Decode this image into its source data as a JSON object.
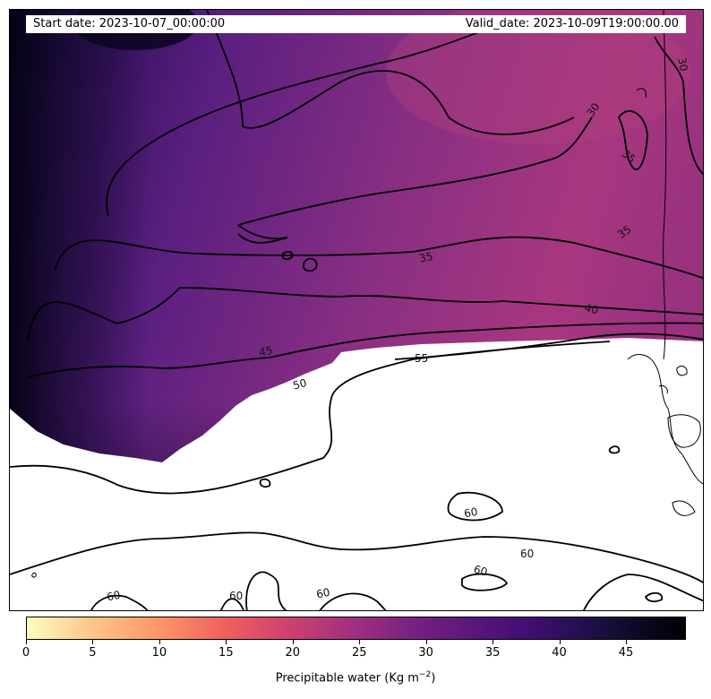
{
  "header": {
    "start_date": "Start date: 2023-10-07_00:00:00",
    "valid_date": "Valid_date: 2023-10-09T19:00:00.00"
  },
  "contour_labels": [
    "30",
    "30",
    "35",
    "35",
    "35",
    "40",
    "45",
    "50",
    "55",
    "60",
    "60",
    "60",
    "60",
    "60",
    "60"
  ],
  "colorbar": {
    "ticks": [
      "0",
      "5",
      "10",
      "15",
      "20",
      "25",
      "30",
      "35",
      "40",
      "45"
    ],
    "label_main": "Precipitable water (Kg m",
    "label_exp": "−2",
    "label_close": ")",
    "min": 0,
    "max": 49.5,
    "colormap": "magma_r"
  }
}
